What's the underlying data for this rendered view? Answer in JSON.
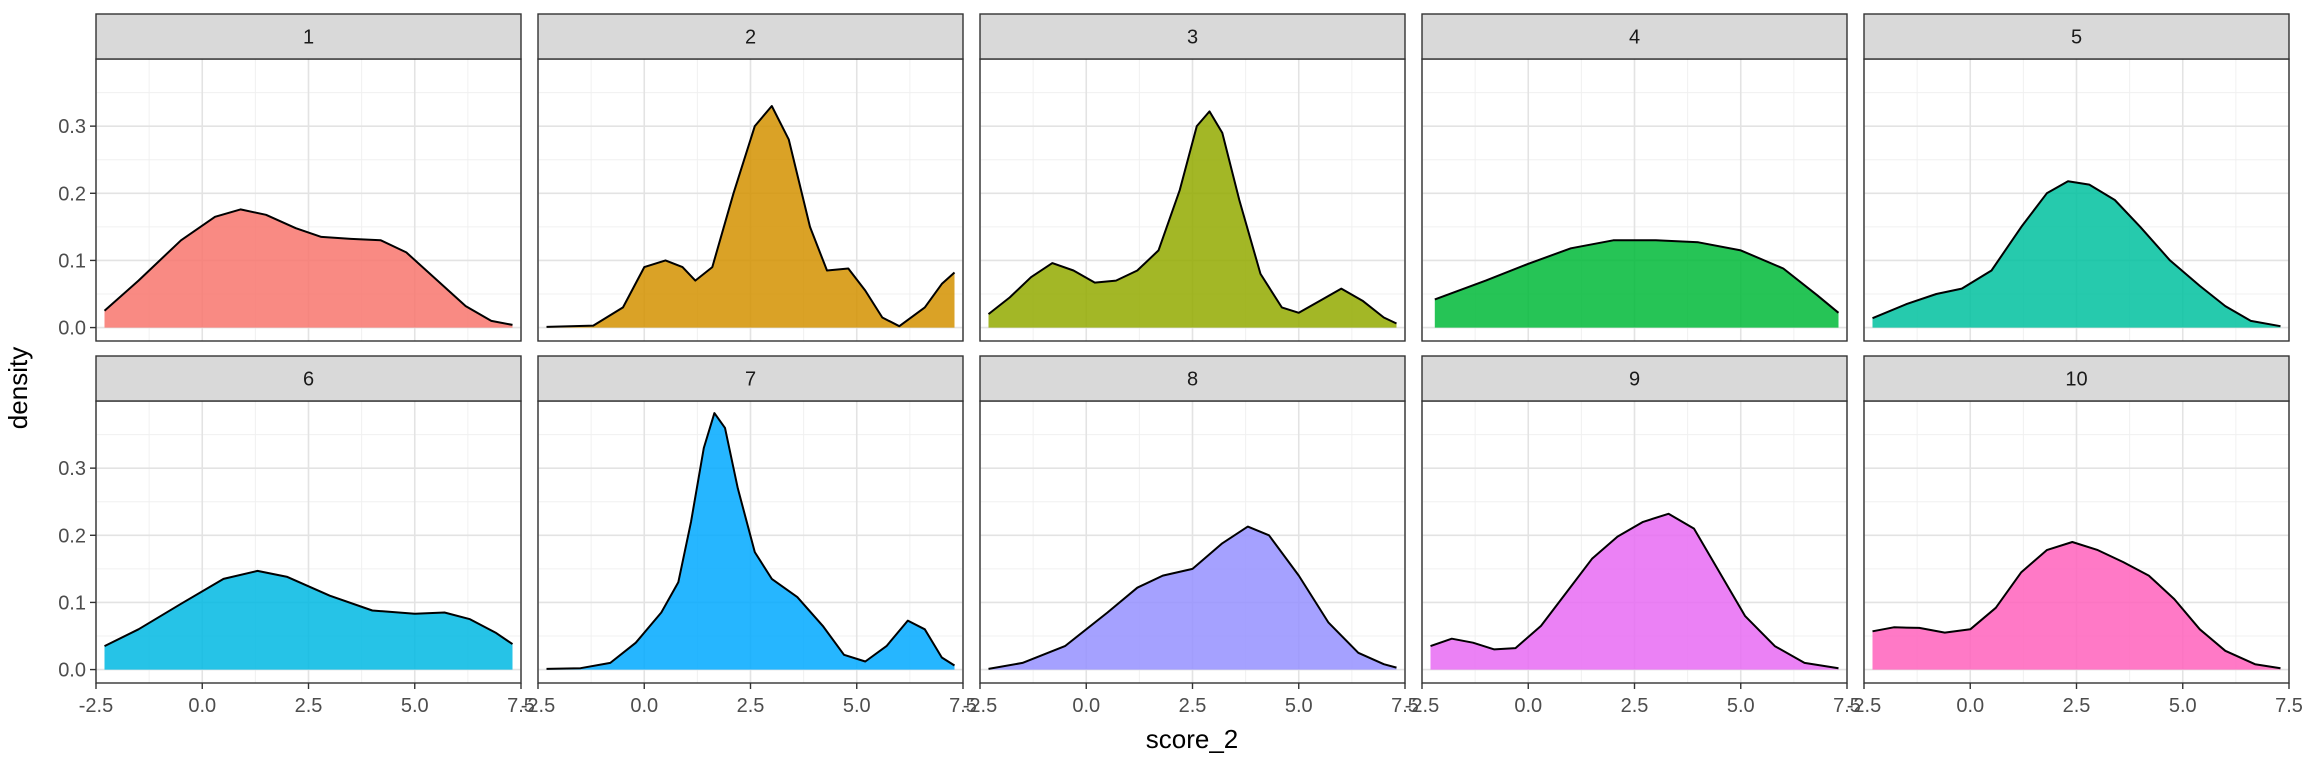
{
  "chart_data": {
    "type": "area",
    "subtype": "faceted-density",
    "xlabel": "score_2",
    "ylabel": "density",
    "xlim": [
      -2.5,
      7.5
    ],
    "ylim": [
      -0.02,
      0.4
    ],
    "x_ticks": [
      -2.5,
      0.0,
      2.5,
      5.0,
      7.5
    ],
    "x_tick_labels": [
      "-2.5",
      "0.0",
      "2.5",
      "5.0",
      "7.5"
    ],
    "y_ticks": [
      0.0,
      0.1,
      0.2,
      0.3
    ],
    "y_tick_labels": [
      "0.0",
      "0.1",
      "0.2",
      "0.3"
    ],
    "grid": true,
    "facet_layout": {
      "rows": 2,
      "cols": 5
    },
    "facets": [
      {
        "label": "1",
        "fill": "#F8766D",
        "points": [
          [
            -2.3,
            0.025
          ],
          [
            -1.5,
            0.07
          ],
          [
            -0.5,
            0.13
          ],
          [
            0.3,
            0.165
          ],
          [
            0.9,
            0.176
          ],
          [
            1.5,
            0.168
          ],
          [
            2.2,
            0.148
          ],
          [
            2.8,
            0.135
          ],
          [
            3.5,
            0.132
          ],
          [
            4.2,
            0.13
          ],
          [
            4.8,
            0.112
          ],
          [
            5.5,
            0.072
          ],
          [
            6.2,
            0.032
          ],
          [
            6.8,
            0.01
          ],
          [
            7.3,
            0.004
          ]
        ]
      },
      {
        "label": "2",
        "fill": "#D39200",
        "points": [
          [
            -2.3,
            0.001
          ],
          [
            -1.2,
            0.003
          ],
          [
            -0.5,
            0.03
          ],
          [
            0.0,
            0.09
          ],
          [
            0.5,
            0.1
          ],
          [
            0.9,
            0.09
          ],
          [
            1.2,
            0.07
          ],
          [
            1.6,
            0.09
          ],
          [
            2.1,
            0.2
          ],
          [
            2.6,
            0.3
          ],
          [
            3.0,
            0.33
          ],
          [
            3.4,
            0.28
          ],
          [
            3.9,
            0.15
          ],
          [
            4.3,
            0.085
          ],
          [
            4.8,
            0.088
          ],
          [
            5.2,
            0.055
          ],
          [
            5.6,
            0.015
          ],
          [
            6.0,
            0.002
          ],
          [
            6.6,
            0.03
          ],
          [
            7.0,
            0.065
          ],
          [
            7.3,
            0.082
          ]
        ]
      },
      {
        "label": "3",
        "fill": "#93AA00",
        "points": [
          [
            -2.3,
            0.02
          ],
          [
            -1.8,
            0.045
          ],
          [
            -1.3,
            0.075
          ],
          [
            -0.8,
            0.096
          ],
          [
            -0.3,
            0.085
          ],
          [
            0.2,
            0.067
          ],
          [
            0.7,
            0.07
          ],
          [
            1.2,
            0.085
          ],
          [
            1.7,
            0.115
          ],
          [
            2.2,
            0.205
          ],
          [
            2.6,
            0.3
          ],
          [
            2.9,
            0.322
          ],
          [
            3.2,
            0.29
          ],
          [
            3.6,
            0.19
          ],
          [
            4.1,
            0.08
          ],
          [
            4.6,
            0.03
          ],
          [
            5.0,
            0.022
          ],
          [
            5.5,
            0.04
          ],
          [
            6.0,
            0.058
          ],
          [
            6.5,
            0.04
          ],
          [
            7.0,
            0.015
          ],
          [
            7.3,
            0.006
          ]
        ]
      },
      {
        "label": "4",
        "fill": "#00BA38",
        "points": [
          [
            -2.2,
            0.042
          ],
          [
            -1.0,
            0.07
          ],
          [
            0.0,
            0.095
          ],
          [
            1.0,
            0.118
          ],
          [
            2.0,
            0.13
          ],
          [
            3.0,
            0.13
          ],
          [
            4.0,
            0.127
          ],
          [
            5.0,
            0.115
          ],
          [
            6.0,
            0.088
          ],
          [
            6.8,
            0.048
          ],
          [
            7.3,
            0.022
          ]
        ]
      },
      {
        "label": "5",
        "fill": "#00C19F",
        "points": [
          [
            -2.3,
            0.014
          ],
          [
            -1.5,
            0.035
          ],
          [
            -0.8,
            0.05
          ],
          [
            -0.2,
            0.058
          ],
          [
            0.5,
            0.085
          ],
          [
            1.2,
            0.15
          ],
          [
            1.8,
            0.2
          ],
          [
            2.3,
            0.218
          ],
          [
            2.8,
            0.213
          ],
          [
            3.4,
            0.19
          ],
          [
            4.0,
            0.15
          ],
          [
            4.7,
            0.1
          ],
          [
            5.4,
            0.062
          ],
          [
            6.0,
            0.032
          ],
          [
            6.6,
            0.01
          ],
          [
            7.3,
            0.002
          ]
        ]
      },
      {
        "label": "6",
        "fill": "#00B9E3",
        "points": [
          [
            -2.3,
            0.035
          ],
          [
            -1.5,
            0.06
          ],
          [
            -0.5,
            0.098
          ],
          [
            0.5,
            0.135
          ],
          [
            1.3,
            0.147
          ],
          [
            2.0,
            0.138
          ],
          [
            3.0,
            0.11
          ],
          [
            4.0,
            0.088
          ],
          [
            5.0,
            0.083
          ],
          [
            5.7,
            0.085
          ],
          [
            6.3,
            0.075
          ],
          [
            6.9,
            0.055
          ],
          [
            7.3,
            0.038
          ]
        ]
      },
      {
        "label": "7",
        "fill": "#00A9FF",
        "points": [
          [
            -2.3,
            0.001
          ],
          [
            -1.5,
            0.002
          ],
          [
            -0.8,
            0.01
          ],
          [
            -0.2,
            0.04
          ],
          [
            0.4,
            0.085
          ],
          [
            0.8,
            0.13
          ],
          [
            1.1,
            0.22
          ],
          [
            1.4,
            0.33
          ],
          [
            1.65,
            0.382
          ],
          [
            1.9,
            0.36
          ],
          [
            2.2,
            0.27
          ],
          [
            2.6,
            0.175
          ],
          [
            3.0,
            0.135
          ],
          [
            3.6,
            0.108
          ],
          [
            4.2,
            0.065
          ],
          [
            4.7,
            0.022
          ],
          [
            5.2,
            0.012
          ],
          [
            5.7,
            0.035
          ],
          [
            6.2,
            0.073
          ],
          [
            6.6,
            0.06
          ],
          [
            7.0,
            0.018
          ],
          [
            7.3,
            0.006
          ]
        ]
      },
      {
        "label": "8",
        "fill": "#9590FF",
        "points": [
          [
            -2.3,
            0.001
          ],
          [
            -1.5,
            0.01
          ],
          [
            -0.5,
            0.035
          ],
          [
            0.5,
            0.085
          ],
          [
            1.2,
            0.122
          ],
          [
            1.8,
            0.14
          ],
          [
            2.5,
            0.15
          ],
          [
            3.2,
            0.188
          ],
          [
            3.8,
            0.213
          ],
          [
            4.3,
            0.2
          ],
          [
            5.0,
            0.14
          ],
          [
            5.7,
            0.07
          ],
          [
            6.4,
            0.025
          ],
          [
            7.0,
            0.008
          ],
          [
            7.3,
            0.003
          ]
        ]
      },
      {
        "label": "9",
        "fill": "#E76BF3",
        "points": [
          [
            -2.3,
            0.035
          ],
          [
            -1.8,
            0.046
          ],
          [
            -1.3,
            0.04
          ],
          [
            -0.8,
            0.03
          ],
          [
            -0.3,
            0.032
          ],
          [
            0.3,
            0.065
          ],
          [
            0.9,
            0.115
          ],
          [
            1.5,
            0.165
          ],
          [
            2.1,
            0.198
          ],
          [
            2.7,
            0.22
          ],
          [
            3.3,
            0.232
          ],
          [
            3.9,
            0.21
          ],
          [
            4.5,
            0.145
          ],
          [
            5.1,
            0.08
          ],
          [
            5.8,
            0.035
          ],
          [
            6.5,
            0.01
          ],
          [
            7.3,
            0.002
          ]
        ]
      },
      {
        "label": "10",
        "fill": "#FF62BC",
        "points": [
          [
            -2.3,
            0.057
          ],
          [
            -1.8,
            0.063
          ],
          [
            -1.2,
            0.062
          ],
          [
            -0.6,
            0.055
          ],
          [
            0.0,
            0.06
          ],
          [
            0.6,
            0.092
          ],
          [
            1.2,
            0.145
          ],
          [
            1.8,
            0.178
          ],
          [
            2.4,
            0.19
          ],
          [
            3.0,
            0.178
          ],
          [
            3.6,
            0.16
          ],
          [
            4.2,
            0.14
          ],
          [
            4.8,
            0.105
          ],
          [
            5.4,
            0.06
          ],
          [
            6.0,
            0.028
          ],
          [
            6.7,
            0.008
          ],
          [
            7.3,
            0.002
          ]
        ]
      }
    ]
  }
}
